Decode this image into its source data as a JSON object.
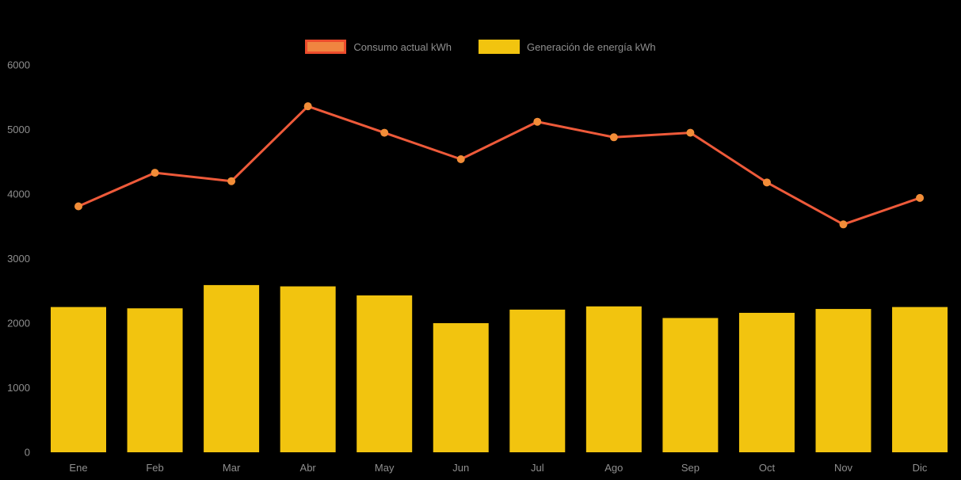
{
  "page": {
    "background": "#000000",
    "text_color": "#8f8f8f"
  },
  "legend": {
    "items": [
      {
        "label": "Consumo actual kWh",
        "type": "line",
        "fill": "#f08540",
        "border": "#ec4c2c"
      },
      {
        "label": "Generación de energía kWh",
        "type": "bar",
        "fill": "#f2c40f",
        "border": "#f2c40f"
      }
    ]
  },
  "chart_data": {
    "type": "mixed",
    "categories": [
      "Ene",
      "Feb",
      "Mar",
      "Abr",
      "May",
      "Jun",
      "Jul",
      "Ago",
      "Sep",
      "Oct",
      "Nov",
      "Dic"
    ],
    "series": [
      {
        "name": "Consumo actual kWh",
        "type": "line",
        "color": "#ee5a3a",
        "point_color": "#f28d38",
        "values": [
          3810,
          4330,
          4200,
          5360,
          4950,
          4540,
          5120,
          4880,
          4950,
          4180,
          3530,
          3940
        ]
      },
      {
        "name": "Generación de energía kWh",
        "type": "bar",
        "color": "#f2c40f",
        "values": [
          2250,
          2230,
          2590,
          2570,
          2430,
          2000,
          2210,
          2260,
          2080,
          2160,
          2220,
          2250
        ]
      }
    ],
    "title": "",
    "xlabel": "",
    "ylabel": "",
    "ylim": [
      0,
      6000
    ],
    "yticks": [
      0,
      1000,
      2000,
      3000,
      4000,
      5000,
      6000
    ],
    "grid": false,
    "legend_position": "top"
  }
}
